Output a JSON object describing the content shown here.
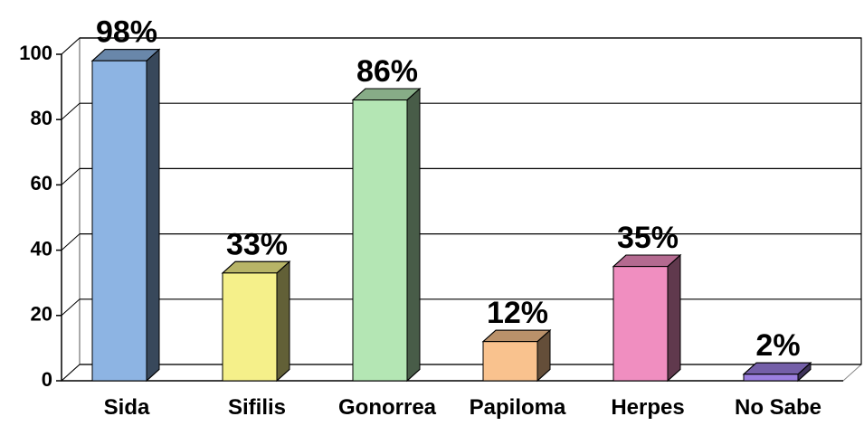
{
  "chart_data": {
    "type": "bar3d",
    "categories": [
      "Sida",
      "Sifilis",
      "Gonorrea",
      "Papiloma",
      "Herpes",
      "No Sabe"
    ],
    "values": [
      98,
      33,
      86,
      12,
      35,
      2
    ],
    "value_labels": [
      "98%",
      "33%",
      "86%",
      "12%",
      "35%",
      "2%"
    ],
    "colors": [
      "#8db4e3",
      "#f5f08a",
      "#b4e6b4",
      "#f9c28e",
      "#f08ec0",
      "#9b7fe0"
    ],
    "ylim": [
      0,
      100
    ],
    "yticks": [
      0,
      20,
      40,
      60,
      80,
      100
    ],
    "grid": true
  }
}
